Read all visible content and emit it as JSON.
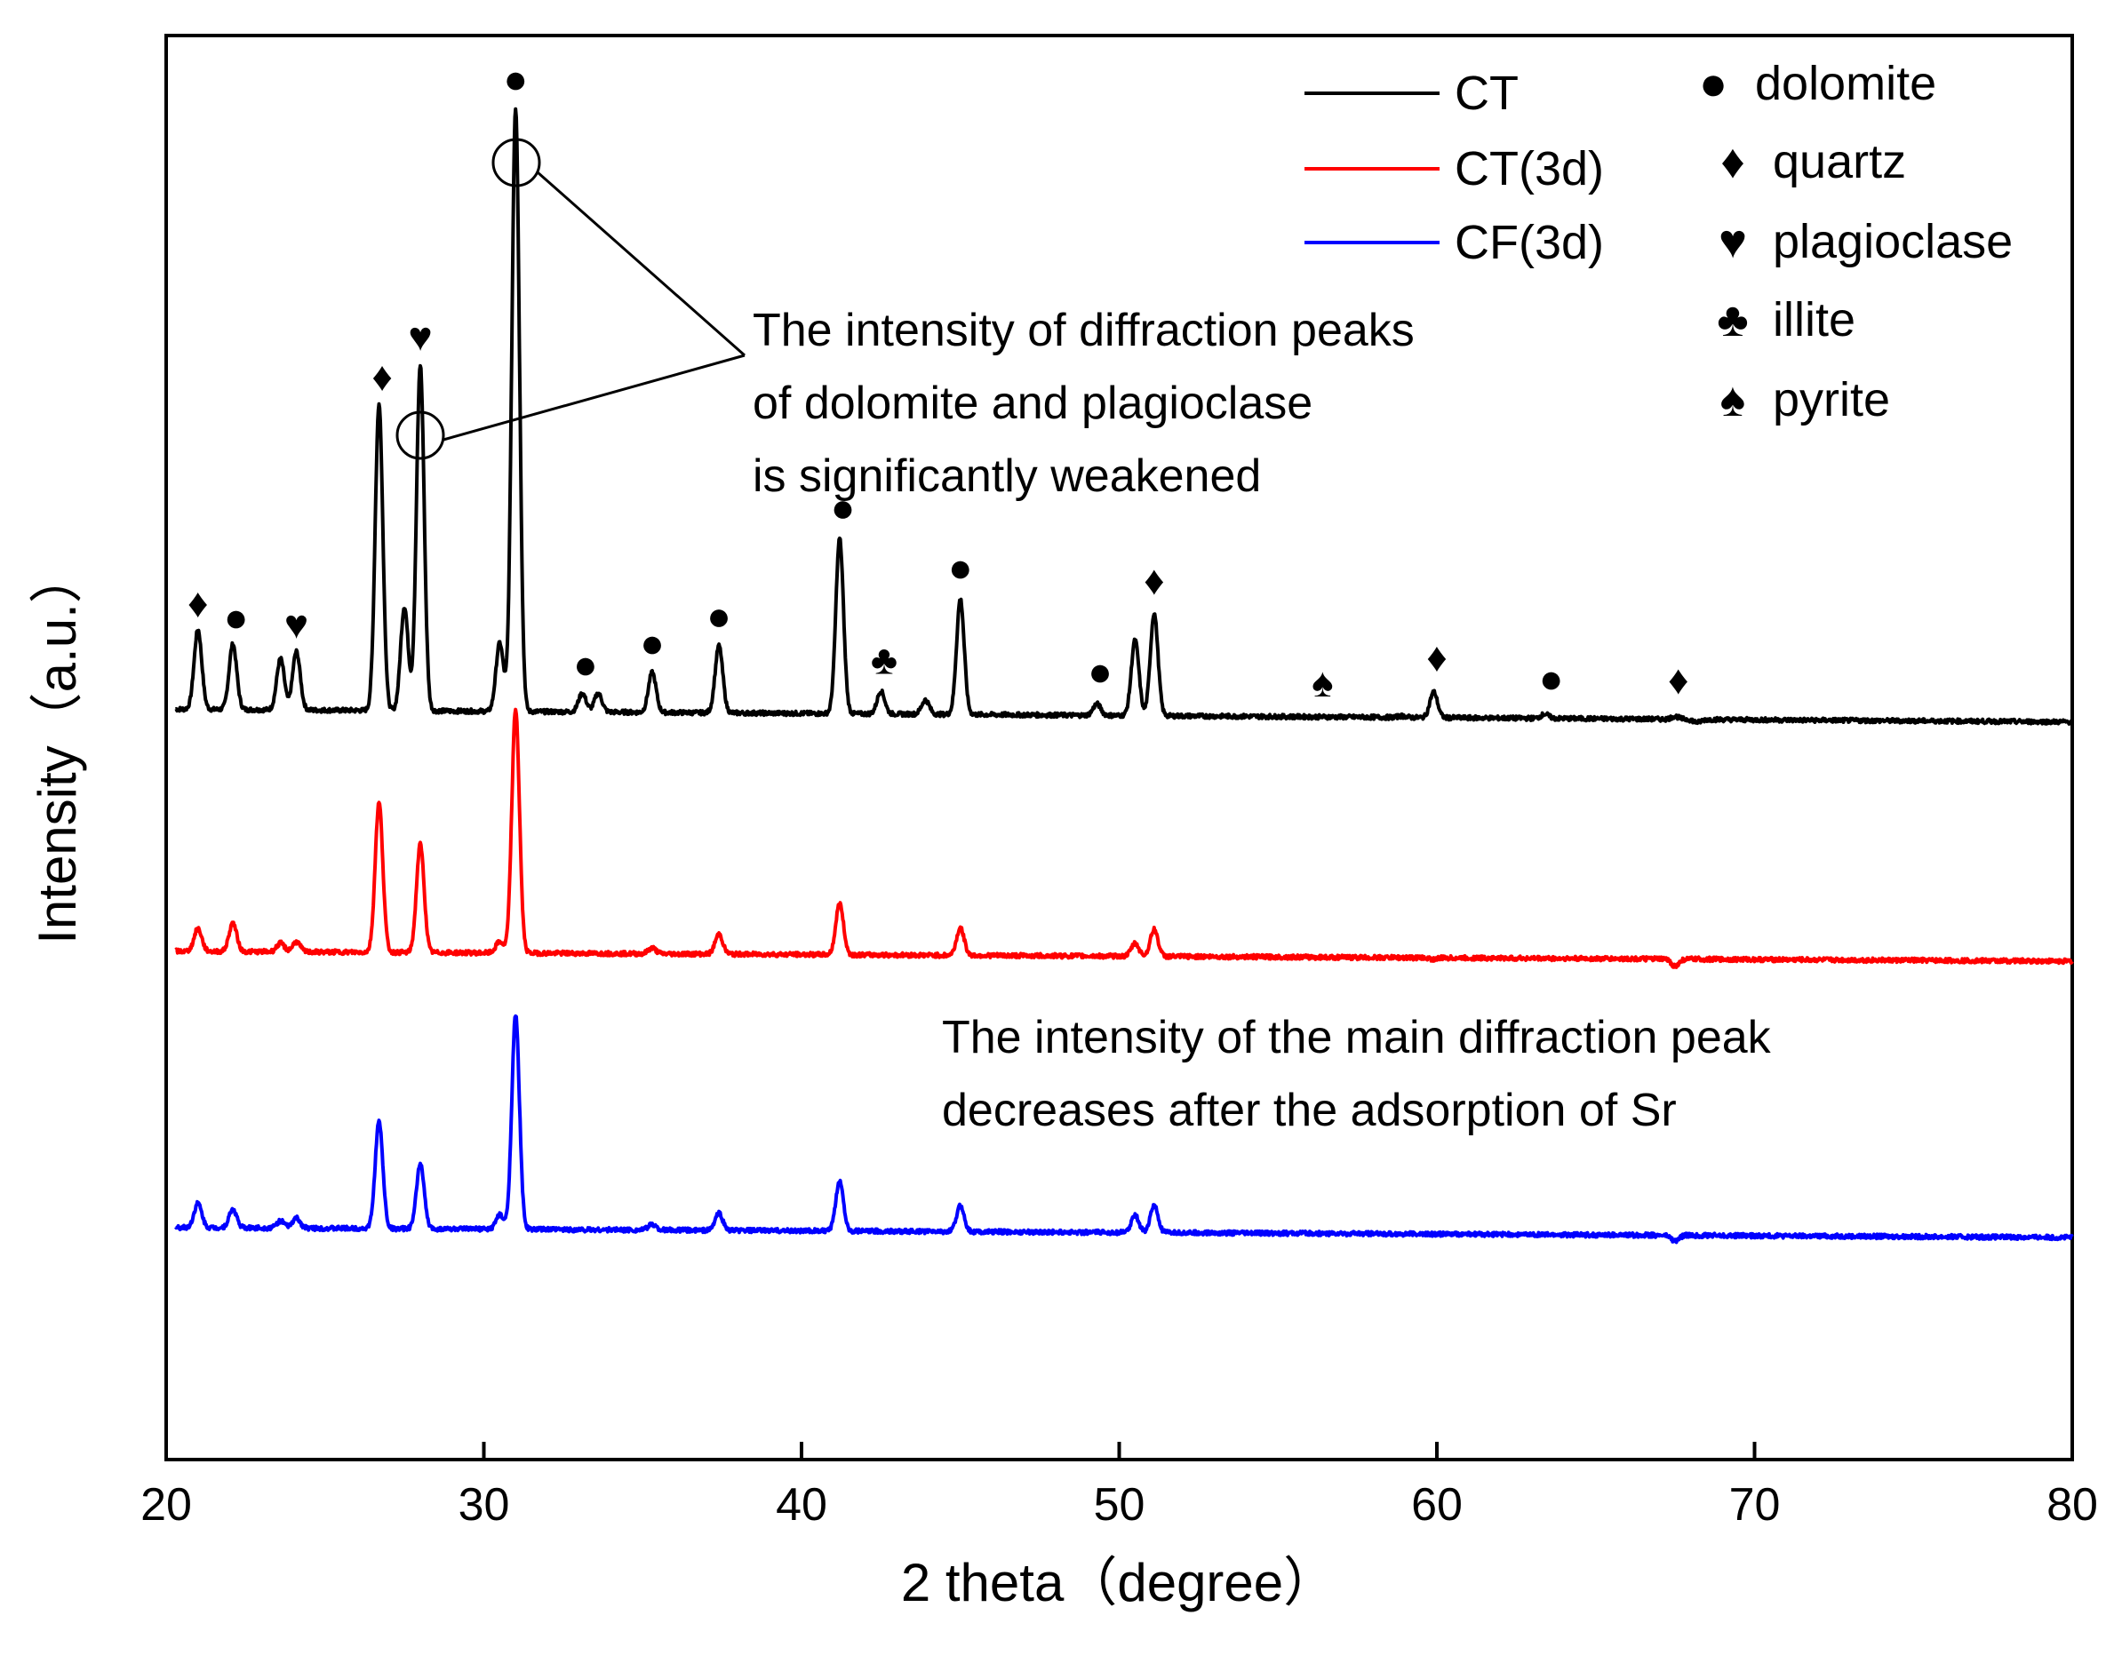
{
  "chart_data": {
    "type": "line",
    "title": "",
    "xlabel": "2 theta（degree）",
    "ylabel": "Intensity（a.u.）",
    "xlim": [
      20,
      80
    ],
    "ylim": [
      0,
      1
    ],
    "x_ticks": [
      20,
      30,
      40,
      50,
      60,
      70,
      80
    ],
    "x_tick_labels": [
      "20",
      "30",
      "40",
      "50",
      "60",
      "70",
      "80"
    ],
    "grid": false,
    "legend_position": "top-right",
    "notes": "Y axis is arbitrary units with vertically offset traces; baseline/peak values estimated in normalized plot units (0 = bottom of axis, 1 = top).",
    "series": [
      {
        "name": "CT",
        "color": "#000000",
        "baseline": 0.527,
        "end_baseline": 0.518,
        "peaks": [
          {
            "x": 21.0,
            "y": 0.583
          },
          {
            "x": 22.1,
            "y": 0.573
          },
          {
            "x": 23.6,
            "y": 0.563
          },
          {
            "x": 24.1,
            "y": 0.568
          },
          {
            "x": 26.7,
            "y": 0.742
          },
          {
            "x": 27.5,
            "y": 0.6
          },
          {
            "x": 28.0,
            "y": 0.77
          },
          {
            "x": 30.5,
            "y": 0.575
          },
          {
            "x": 31.0,
            "y": 0.951
          },
          {
            "x": 33.1,
            "y": 0.54
          },
          {
            "x": 33.6,
            "y": 0.54
          },
          {
            "x": 35.3,
            "y": 0.555
          },
          {
            "x": 37.4,
            "y": 0.574
          },
          {
            "x": 41.2,
            "y": 0.65
          },
          {
            "x": 42.5,
            "y": 0.543
          },
          {
            "x": 43.9,
            "y": 0.537
          },
          {
            "x": 45.0,
            "y": 0.608
          },
          {
            "x": 49.3,
            "y": 0.535
          },
          {
            "x": 50.5,
            "y": 0.58
          },
          {
            "x": 51.1,
            "y": 0.599
          },
          {
            "x": 56.4,
            "y": 0.527
          },
          {
            "x": 58.9,
            "y": 0.528
          },
          {
            "x": 59.9,
            "y": 0.545
          },
          {
            "x": 63.4,
            "y": 0.53
          },
          {
            "x": 67.5,
            "y": 0.529
          },
          {
            "x": 68.2,
            "y": 0.525
          }
        ]
      },
      {
        "name": "CT(3d)",
        "color": "#ff0000",
        "baseline": 0.357,
        "end_baseline": 0.35,
        "peaks": [
          {
            "x": 21.0,
            "y": 0.373
          },
          {
            "x": 22.1,
            "y": 0.377
          },
          {
            "x": 23.6,
            "y": 0.363
          },
          {
            "x": 24.1,
            "y": 0.364
          },
          {
            "x": 26.7,
            "y": 0.462
          },
          {
            "x": 28.0,
            "y": 0.433
          },
          {
            "x": 30.5,
            "y": 0.365
          },
          {
            "x": 31.0,
            "y": 0.528
          },
          {
            "x": 35.3,
            "y": 0.361
          },
          {
            "x": 37.4,
            "y": 0.371
          },
          {
            "x": 41.2,
            "y": 0.393
          },
          {
            "x": 45.0,
            "y": 0.376
          },
          {
            "x": 50.5,
            "y": 0.366
          },
          {
            "x": 51.1,
            "y": 0.376
          },
          {
            "x": 59.9,
            "y": 0.356
          },
          {
            "x": 67.5,
            "y": 0.352
          }
        ]
      },
      {
        "name": "CF(3d)",
        "color": "#0000ff",
        "baseline": 0.163,
        "end_baseline": 0.156,
        "peaks": [
          {
            "x": 21.0,
            "y": 0.18
          },
          {
            "x": 22.1,
            "y": 0.176
          },
          {
            "x": 23.6,
            "y": 0.168
          },
          {
            "x": 24.1,
            "y": 0.17
          },
          {
            "x": 26.7,
            "y": 0.238
          },
          {
            "x": 28.0,
            "y": 0.209
          },
          {
            "x": 30.5,
            "y": 0.173
          },
          {
            "x": 31.0,
            "y": 0.313
          },
          {
            "x": 35.3,
            "y": 0.167
          },
          {
            "x": 37.4,
            "y": 0.175
          },
          {
            "x": 41.2,
            "y": 0.198
          },
          {
            "x": 45.0,
            "y": 0.181
          },
          {
            "x": 50.5,
            "y": 0.175
          },
          {
            "x": 51.1,
            "y": 0.182
          },
          {
            "x": 59.9,
            "y": 0.163
          },
          {
            "x": 67.5,
            "y": 0.159
          }
        ]
      }
    ],
    "phase_legend": [
      {
        "symbol": "●",
        "label": "dolomite"
      },
      {
        "symbol": "♦",
        "label": "quartz"
      },
      {
        "symbol": "♥",
        "label": "plagioclase"
      },
      {
        "symbol": "♣",
        "label": "illite"
      },
      {
        "symbol": "♠",
        "label": "pyrite"
      }
    ],
    "phase_markers": [
      {
        "x": 21.0,
        "symbol": "♦"
      },
      {
        "x": 22.2,
        "symbol": "●"
      },
      {
        "x": 24.1,
        "symbol": "♥"
      },
      {
        "x": 26.8,
        "symbol": "♦"
      },
      {
        "x": 28.0,
        "symbol": "♥"
      },
      {
        "x": 31.0,
        "symbol": "●"
      },
      {
        "x": 33.2,
        "symbol": "●"
      },
      {
        "x": 35.3,
        "symbol": "●"
      },
      {
        "x": 37.4,
        "symbol": "●"
      },
      {
        "x": 41.3,
        "symbol": "●"
      },
      {
        "x": 42.6,
        "symbol": "♣"
      },
      {
        "x": 45.0,
        "symbol": "●"
      },
      {
        "x": 49.4,
        "symbol": "●"
      },
      {
        "x": 51.1,
        "symbol": "♦"
      },
      {
        "x": 56.4,
        "symbol": "♠"
      },
      {
        "x": 60.0,
        "symbol": "♦"
      },
      {
        "x": 63.6,
        "symbol": "●"
      },
      {
        "x": 67.6,
        "symbol": "♦"
      }
    ],
    "annotations": [
      {
        "lines": [
          "The intensity of diffraction peaks",
          "of dolomite and plagioclase",
          "is significantly weakened"
        ]
      },
      {
        "lines": [
          "The intensity of the main diffraction peak",
          "decreases after the adsorption of Sr"
        ]
      }
    ]
  }
}
